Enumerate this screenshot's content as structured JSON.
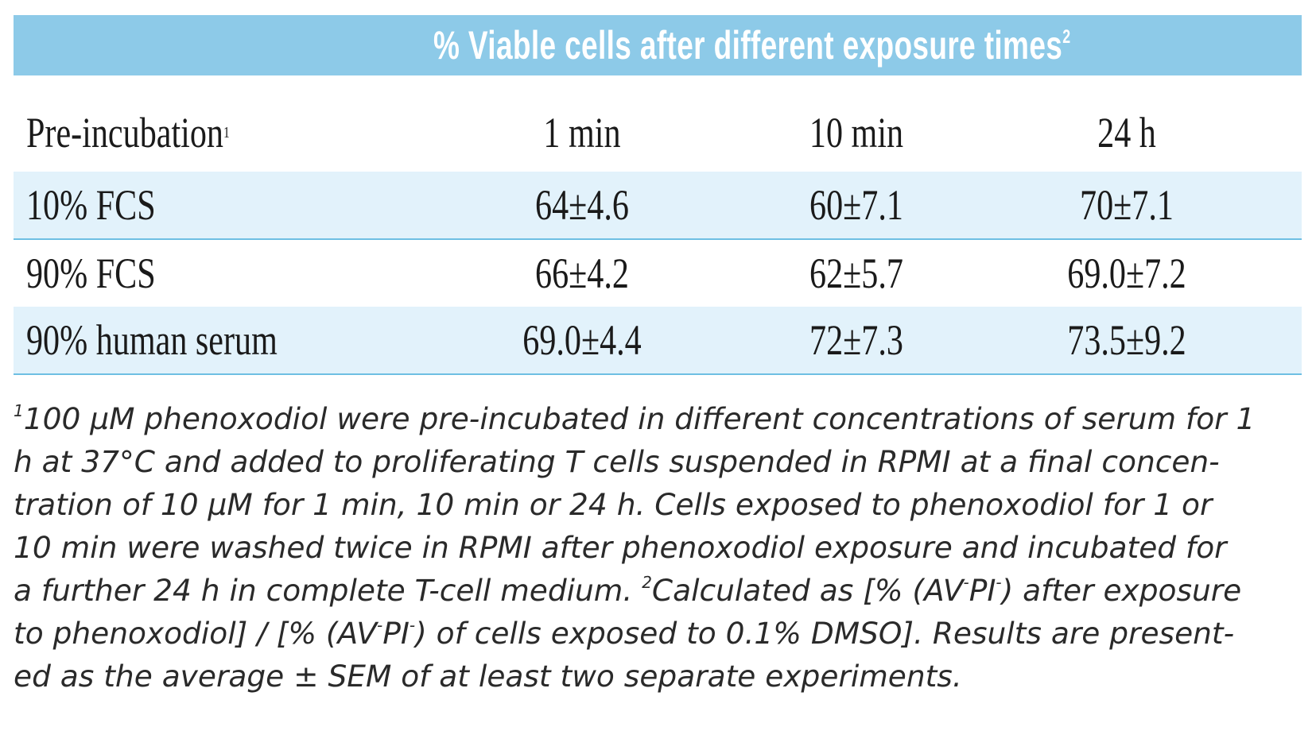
{
  "table": {
    "title": "% Viable cells after different exposure times",
    "title_sup": "2",
    "header": {
      "first": "Pre-incubation",
      "first_sup": "1",
      "col1": "1 min",
      "col2": "10 min",
      "col3": "24 h"
    },
    "rows": [
      {
        "label": "10% FCS",
        "v1": "64±4.6",
        "v2": "60±7.1",
        "v3": "70±7.1"
      },
      {
        "label": "90% FCS",
        "v1": "66±4.2",
        "v2": "62±5.7",
        "v3": "69.0±7.2"
      },
      {
        "label": "90% human serum",
        "v1": "69.0±4.4",
        "v2": "72±7.3",
        "v3": "73.5±9.2"
      }
    ]
  },
  "footnote": {
    "sup1": "1",
    "line1": "100 µM phenoxodiol were pre-incubated in different concentrations of serum for 1",
    "line2": "h at 37°C and added to proliferating T cells suspended in RPMI at a final concen-",
    "line3": "tration of 10 µM for 1 min, 10 min or 24 h. Cells exposed to phenoxodiol for 1 or",
    "line4": "10 min were washed twice in RPMI after phenoxodiol exposure and incubated for",
    "line5a": "a further 24 h in complete T-cell medium. ",
    "sup2": "2",
    "line5b": "Calculated as [% (AV",
    "m1": "-",
    "line5c": "PI",
    "m2": "-",
    "line5d": ") after exposure",
    "line6a": "to phenoxodiol] / [% (AV",
    "m3": "-",
    "line6b": "PI",
    "m4": "-",
    "line6c": ") of cells exposed to 0.1% DMSO]. Results are present-",
    "line7": "ed as the average ± SEM of at least two separate experiments."
  }
}
